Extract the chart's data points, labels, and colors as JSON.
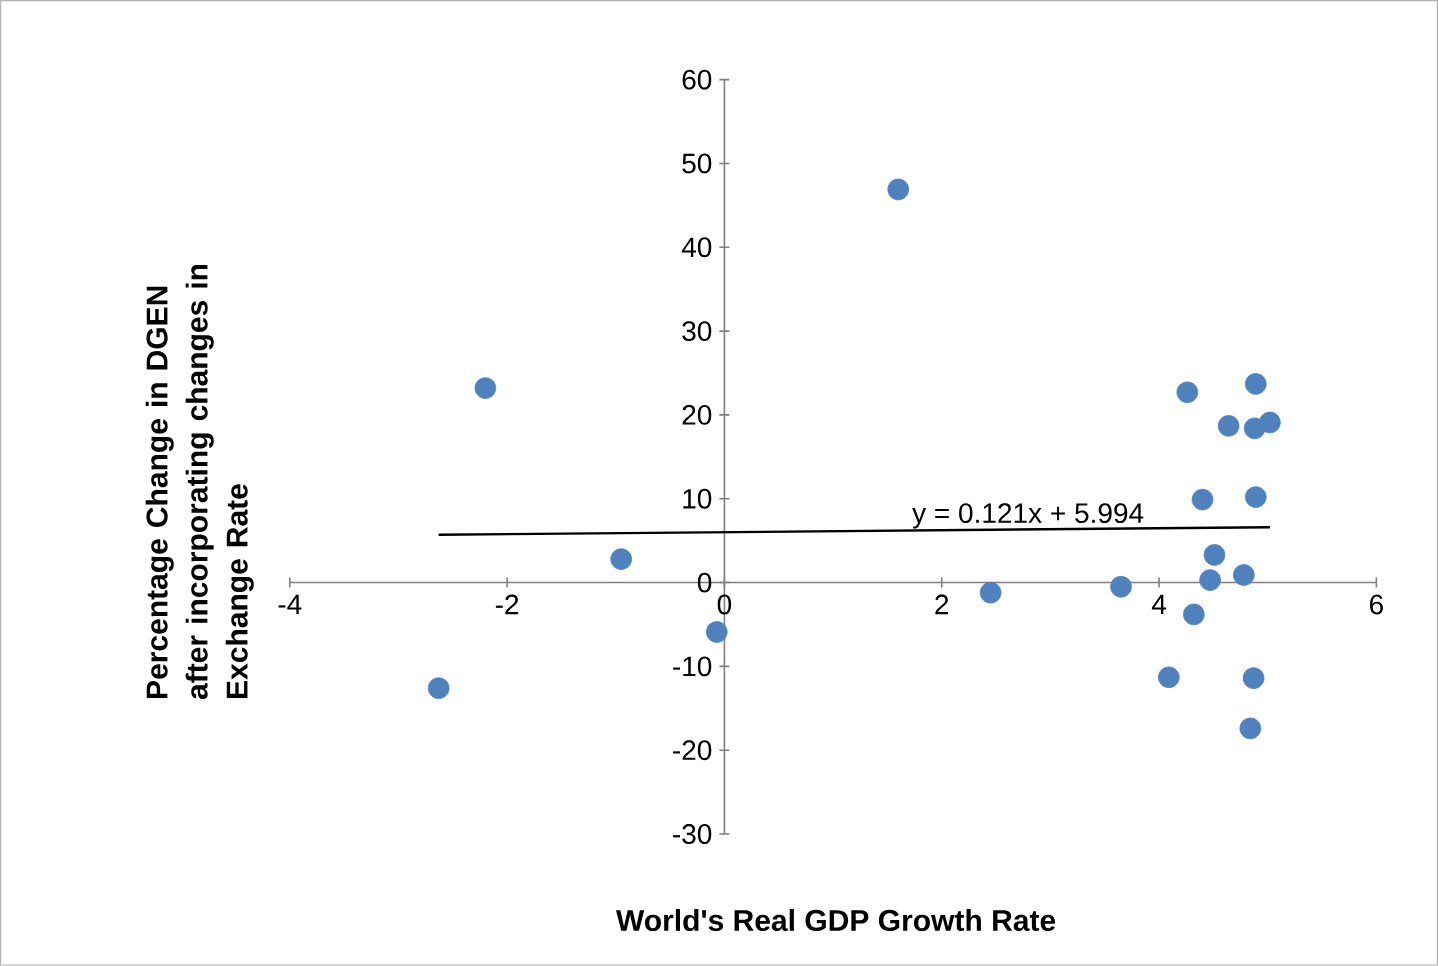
{
  "chart_data": {
    "type": "scatter",
    "xlabel": "World's Real GDP Growth Rate",
    "ylabel": "Percentage Change in DGEN after incorporating changes in Exchange Rate",
    "xlim": [
      -4,
      6
    ],
    "ylim": [
      -30,
      60
    ],
    "xticks": [
      -4,
      -2,
      0,
      2,
      4,
      6
    ],
    "yticks": [
      -30,
      -20,
      -10,
      0,
      10,
      20,
      30,
      40,
      50,
      60
    ],
    "marker": "circle",
    "annotations": [
      "y = 0.121x + 5.994"
    ],
    "series": [
      {
        "color": "#4f81bd",
        "x": [
          -2.2,
          -2.63,
          -0.95,
          -0.07,
          1.6,
          2.45,
          4.26,
          4.89,
          4.64,
          4.88,
          5.02,
          4.4,
          4.89,
          4.51,
          4.47,
          4.78,
          3.65,
          4.32,
          4.09,
          4.87,
          4.84
        ],
        "values": [
          23.2,
          -12.6,
          2.8,
          -5.9,
          46.9,
          -1.2,
          22.7,
          23.7,
          18.7,
          18.4,
          19.1,
          9.9,
          10.2,
          3.3,
          0.3,
          0.9,
          -0.5,
          -3.8,
          -11.3,
          -11.4,
          -17.4
        ]
      },
      {
        "type": "line",
        "marker": "none",
        "color": "#000000",
        "x": [
          -2.63,
          5.02
        ],
        "values": [
          5.7,
          6.6
        ]
      }
    ]
  }
}
